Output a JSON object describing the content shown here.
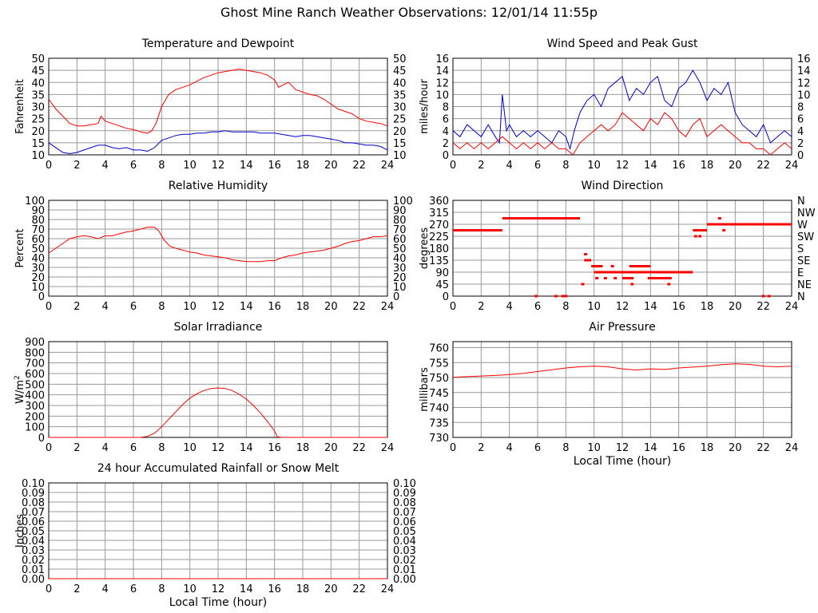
{
  "page": {
    "title": "Ghost Mine Ranch Weather Observations: 12/01/14 11:55p"
  },
  "chart_data": [
    {
      "id": "temperature",
      "type": "line",
      "title": "Temperature and Dewpoint",
      "ylabel": "Fahrenheit",
      "xlabel": "",
      "xlim": [
        0,
        24
      ],
      "ylim": [
        10,
        50
      ],
      "xticks": [
        0,
        2,
        4,
        6,
        8,
        10,
        12,
        14,
        16,
        18,
        20,
        22,
        24
      ],
      "yticks": [
        10,
        15,
        20,
        25,
        30,
        35,
        40,
        45,
        50
      ],
      "right_axis_labels": true,
      "grid": true,
      "series": [
        {
          "color": "#ff0000",
          "x": [
            0,
            0.5,
            1,
            1.5,
            2,
            2.5,
            3,
            3.5,
            3.7,
            4,
            4.5,
            5,
            5.5,
            6,
            6.5,
            7,
            7.3,
            7.6,
            8,
            8.5,
            9,
            9.5,
            10,
            10.5,
            11,
            11.5,
            12,
            12.5,
            13,
            13.5,
            14,
            14.5,
            15,
            15.5,
            16,
            16.3,
            16.6,
            17,
            17.5,
            18,
            18.5,
            19,
            19.5,
            20,
            20.5,
            21,
            21.5,
            22,
            22.5,
            23,
            23.5,
            24
          ],
          "y": [
            33,
            29,
            26,
            23,
            22,
            22,
            22.5,
            23,
            26,
            24,
            23,
            22,
            21,
            20.5,
            19.5,
            19,
            20,
            23,
            30,
            35,
            37,
            38,
            39,
            40.5,
            42,
            43,
            44,
            44.5,
            45,
            45.5,
            45,
            44.5,
            44,
            43,
            41,
            38,
            39,
            40,
            37,
            36,
            35,
            34.5,
            33,
            31,
            29,
            28,
            27,
            25,
            24,
            23.5,
            23,
            22
          ]
        },
        {
          "color": "#0000cc",
          "x": [
            0,
            0.5,
            1,
            1.5,
            2,
            2.5,
            3,
            3.5,
            4,
            4.5,
            5,
            5.5,
            6,
            6.5,
            7,
            7.5,
            8,
            8.5,
            9,
            9.5,
            10,
            10.5,
            11,
            11.5,
            12,
            12.5,
            13,
            13.5,
            14,
            14.5,
            15,
            15.5,
            16,
            16.5,
            17,
            17.5,
            18,
            18.5,
            19,
            19.5,
            20,
            20.5,
            21,
            21.5,
            22,
            22.5,
            23,
            23.5,
            24
          ],
          "y": [
            15,
            13,
            11,
            10.5,
            11,
            12,
            13,
            14,
            14,
            13,
            12.5,
            13,
            12,
            12,
            11.5,
            13,
            16,
            17,
            18,
            18.5,
            18.5,
            19,
            19,
            19.5,
            19.5,
            20,
            19.5,
            19.5,
            19.5,
            19.5,
            19,
            19,
            19,
            18.5,
            18,
            17.5,
            18,
            18,
            17.5,
            17,
            16.5,
            16,
            15,
            15,
            14.5,
            14,
            14,
            13.5,
            12
          ]
        }
      ]
    },
    {
      "id": "wind-speed",
      "type": "line",
      "title": "Wind Speed and Peak Gust",
      "ylabel": "miles/hour",
      "xlabel": "",
      "xlim": [
        0,
        24
      ],
      "ylim": [
        0,
        16
      ],
      "xticks": [
        0,
        2,
        4,
        6,
        8,
        10,
        12,
        14,
        16,
        18,
        20,
        22,
        24
      ],
      "yticks": [
        0,
        2,
        4,
        6,
        8,
        10,
        12,
        14,
        16
      ],
      "right_axis_labels": true,
      "grid": true,
      "series": [
        {
          "color": "#0000cc",
          "x": [
            0,
            0.5,
            1,
            1.5,
            2,
            2.5,
            3,
            3.3,
            3.5,
            3.8,
            4,
            4.5,
            5,
            5.5,
            6,
            6.5,
            7,
            7.5,
            8,
            8.3,
            8.6,
            9,
            9.5,
            10,
            10.5,
            11,
            11.5,
            12,
            12.5,
            13,
            13.5,
            14,
            14.5,
            15,
            15.5,
            16,
            16.5,
            17,
            17.5,
            18,
            18.5,
            19,
            19.5,
            20,
            20.5,
            21,
            21.5,
            22,
            22.5,
            23,
            23.5,
            24
          ],
          "y": [
            4,
            3,
            5,
            4,
            3,
            5,
            3,
            2,
            10,
            4,
            5,
            3,
            4,
            3,
            4,
            3,
            2,
            4,
            3,
            1,
            4,
            7,
            9,
            10,
            8,
            11,
            12,
            13,
            9,
            11,
            10,
            12,
            13,
            9,
            8,
            11,
            12,
            14,
            12,
            9,
            11,
            10,
            12,
            7,
            5,
            4,
            3,
            5,
            2,
            3,
            4,
            3
          ]
        },
        {
          "color": "#ff0000",
          "x": [
            0,
            0.5,
            1,
            1.5,
            2,
            2.5,
            3,
            3.5,
            4,
            4.5,
            5,
            5.5,
            6,
            6.5,
            7,
            7.5,
            8,
            8.5,
            9,
            9.5,
            10,
            10.5,
            11,
            11.5,
            12,
            12.5,
            13,
            13.5,
            14,
            14.5,
            15,
            15.5,
            16,
            16.5,
            17,
            17.5,
            18,
            18.5,
            19,
            19.5,
            20,
            20.5,
            21,
            21.5,
            22,
            22.5,
            23,
            23.5,
            24
          ],
          "y": [
            2,
            1,
            2,
            1,
            2,
            1,
            2,
            3,
            2,
            1,
            2,
            1,
            2,
            1,
            2,
            1,
            1,
            0,
            2,
            3,
            4,
            5,
            4,
            5,
            7,
            6,
            5,
            4,
            6,
            5,
            7,
            6,
            4,
            3,
            5,
            6,
            3,
            4,
            5,
            4,
            3,
            2,
            2,
            1,
            1,
            0,
            1,
            2,
            1
          ]
        }
      ]
    },
    {
      "id": "humidity",
      "type": "line",
      "title": "Relative Humidity",
      "ylabel": "Percent",
      "xlabel": "",
      "xlim": [
        0,
        24
      ],
      "ylim": [
        0,
        100
      ],
      "xticks": [
        0,
        2,
        4,
        6,
        8,
        10,
        12,
        14,
        16,
        18,
        20,
        22,
        24
      ],
      "yticks": [
        0,
        10,
        20,
        30,
        40,
        50,
        60,
        70,
        80,
        90,
        100
      ],
      "right_axis_labels": true,
      "grid": true,
      "series": [
        {
          "color": "#ff0000",
          "x": [
            0,
            0.5,
            1,
            1.5,
            2,
            2.5,
            3,
            3.5,
            4,
            4.5,
            5,
            5.5,
            6,
            6.5,
            7,
            7.5,
            7.8,
            8.2,
            8.6,
            9,
            9.5,
            10,
            10.5,
            11,
            11.5,
            12,
            12.5,
            13,
            13.5,
            14,
            14.5,
            15,
            15.5,
            16,
            16.5,
            17,
            17.5,
            18,
            18.5,
            19,
            19.5,
            20,
            20.5,
            21,
            21.5,
            22,
            22.5,
            23,
            23.5,
            24
          ],
          "y": [
            45,
            50,
            55,
            60,
            62,
            63,
            62,
            60,
            63,
            63,
            65,
            67,
            68,
            70,
            72,
            72,
            68,
            58,
            52,
            50,
            48,
            46,
            45,
            43,
            42,
            41,
            40,
            38,
            37,
            36,
            36,
            36,
            37,
            37,
            40,
            42,
            43,
            45,
            46,
            47,
            48,
            50,
            52,
            55,
            57,
            58,
            60,
            62,
            62,
            63
          ]
        }
      ]
    },
    {
      "id": "wind-direction",
      "type": "scatter",
      "title": "Wind Direction",
      "ylabel": "degrees",
      "xlabel": "",
      "xlim": [
        0,
        24
      ],
      "ylim": [
        0,
        360
      ],
      "xticks": [
        0,
        2,
        4,
        6,
        8,
        10,
        12,
        14,
        16,
        18,
        20,
        22,
        24
      ],
      "yticks": [
        0,
        45,
        90,
        135,
        180,
        225,
        270,
        315,
        360
      ],
      "right_tick_labels": [
        "N",
        "NE",
        "E",
        "SE",
        "S",
        "SW",
        "W",
        "NW",
        "N"
      ],
      "grid": true,
      "segments": [
        {
          "x1": 0,
          "x2": 3.5,
          "y": 247.5
        },
        {
          "x1": 3.5,
          "x2": 9.0,
          "y": 292.5
        },
        {
          "x1": 9.3,
          "x2": 9.8,
          "y": 135
        },
        {
          "x1": 9.8,
          "x2": 10.5,
          "y": 112.5
        },
        {
          "x1": 10.0,
          "x2": 17.0,
          "y": 90
        },
        {
          "x1": 12.5,
          "x2": 14.0,
          "y": 112.5
        },
        {
          "x1": 12.0,
          "x2": 12.8,
          "y": 67.5
        },
        {
          "x1": 13.8,
          "x2": 15.5,
          "y": 67.5
        },
        {
          "x1": 17.0,
          "x2": 17.5,
          "y": 247.5
        },
        {
          "x1": 17.5,
          "x2": 18.0,
          "y": 247.5
        },
        {
          "x1": 18.0,
          "x2": 24.0,
          "y": 270
        }
      ],
      "points": [
        {
          "x": 5.9,
          "y": 0
        },
        {
          "x": 7.3,
          "y": 0
        },
        {
          "x": 7.8,
          "y": 0
        },
        {
          "x": 8.0,
          "y": 0
        },
        {
          "x": 9.2,
          "y": 45
        },
        {
          "x": 9.4,
          "y": 157.5
        },
        {
          "x": 10.2,
          "y": 67.5
        },
        {
          "x": 10.5,
          "y": 112.5
        },
        {
          "x": 10.8,
          "y": 67.5
        },
        {
          "x": 11.3,
          "y": 112.5
        },
        {
          "x": 11.5,
          "y": 67.5
        },
        {
          "x": 12.7,
          "y": 45
        },
        {
          "x": 15.3,
          "y": 45
        },
        {
          "x": 17.2,
          "y": 225
        },
        {
          "x": 17.5,
          "y": 225
        },
        {
          "x": 18.9,
          "y": 292.5
        },
        {
          "x": 19.2,
          "y": 247.5
        },
        {
          "x": 22.0,
          "y": 0
        },
        {
          "x": 22.4,
          "y": 0
        }
      ]
    },
    {
      "id": "solar",
      "type": "line",
      "title": "Solar Irradiance",
      "ylabel": "W/m2",
      "xlabel": "",
      "xlim": [
        0,
        24
      ],
      "ylim": [
        0,
        900
      ],
      "xticks": [
        0,
        2,
        4,
        6,
        8,
        10,
        12,
        14,
        16,
        18,
        20,
        22,
        24
      ],
      "yticks": [
        0,
        100,
        200,
        300,
        400,
        500,
        600,
        700,
        800,
        900
      ],
      "right_axis_labels": false,
      "grid": true,
      "series": [
        {
          "color": "#ff0000",
          "x": [
            0,
            6.5,
            7,
            7.5,
            8,
            8.5,
            9,
            9.5,
            10,
            10.5,
            11,
            11.5,
            12,
            12.5,
            13,
            13.5,
            14,
            14.5,
            15,
            15.5,
            16,
            16.2,
            16.5,
            24
          ],
          "y": [
            0,
            0,
            10,
            40,
            100,
            170,
            240,
            310,
            370,
            410,
            440,
            460,
            465,
            460,
            440,
            405,
            360,
            300,
            230,
            150,
            60,
            5,
            0,
            0
          ]
        }
      ]
    },
    {
      "id": "pressure",
      "type": "line",
      "title": "Air Pressure",
      "ylabel": "millibars",
      "xlabel": "Local Time (hour)",
      "xlim": [
        0,
        24
      ],
      "ylim": [
        730,
        762
      ],
      "xticks": [
        0,
        2,
        4,
        6,
        8,
        10,
        12,
        14,
        16,
        18,
        20,
        22,
        24
      ],
      "yticks": [
        730,
        735,
        740,
        745,
        750,
        755,
        760
      ],
      "right_axis_labels": false,
      "grid": true,
      "series": [
        {
          "color": "#ff0000",
          "x": [
            0,
            1,
            2,
            3,
            4,
            5,
            6,
            7,
            8,
            9,
            10,
            11,
            12,
            13,
            14,
            15,
            16,
            17,
            18,
            19,
            20,
            21,
            22,
            23,
            24
          ],
          "y": [
            750.1,
            750.3,
            750.5,
            750.7,
            751,
            751.4,
            752,
            752.6,
            753.2,
            753.6,
            753.8,
            753.6,
            752.9,
            752.5,
            752.9,
            752.7,
            753.2,
            753.5,
            753.8,
            754.3,
            754.6,
            754.4,
            753.8,
            753.6,
            753.8
          ]
        }
      ]
    },
    {
      "id": "rainfall",
      "type": "line",
      "title": "24 hour Accumulated Rainfall or Snow Melt",
      "ylabel": "Inches",
      "xlabel": "Local Time (hour)",
      "xlim": [
        0,
        24
      ],
      "ylim": [
        0,
        0.1
      ],
      "xticks": [
        0,
        2,
        4,
        6,
        8,
        10,
        12,
        14,
        16,
        18,
        20,
        22,
        24
      ],
      "yticks": [
        0.0,
        0.01,
        0.02,
        0.03,
        0.04,
        0.05,
        0.06,
        0.07,
        0.08,
        0.09,
        0.1
      ],
      "ytick_format": 2,
      "right_axis_labels": true,
      "grid": true,
      "series": [
        {
          "color": "#ff0000",
          "x": [
            0,
            24
          ],
          "y": [
            0,
            0
          ]
        }
      ]
    }
  ]
}
